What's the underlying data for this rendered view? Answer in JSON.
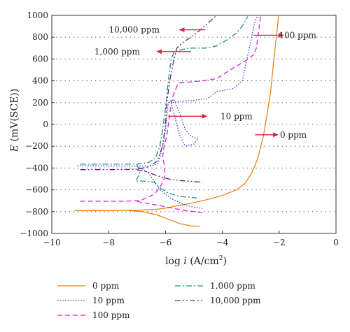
{
  "chart_data": {
    "type": "line",
    "xlabel_main": "log ",
    "xlabel_italic": "i",
    "xlabel_unit": " (A/cm",
    "xlabel_sup": "2",
    "xlabel_close": ")",
    "ylabel_italic": "E",
    "ylabel_unit": " (mV(SCE))",
    "xlim": [
      -10,
      0
    ],
    "ylim": [
      -1000,
      1000
    ],
    "xticks": [
      -10,
      -8,
      -6,
      -4,
      -2,
      0
    ],
    "xtick_labels": [
      "−10",
      "−8",
      "−6",
      "−4",
      "−2",
      "0"
    ],
    "yticks": [
      -1000,
      -800,
      -600,
      -400,
      -200,
      0,
      200,
      400,
      600,
      800,
      1000
    ],
    "ytick_labels": [
      "−1000",
      "−800",
      "−600",
      "−400",
      "−200",
      "0",
      "200",
      "400",
      "600",
      "800",
      "1000"
    ],
    "grid": "horizontal dotted",
    "legend_position": "bottom",
    "series": [
      {
        "name": "0 ppm",
        "color": "#e8831f",
        "dash": "solid",
        "points": [
          [
            -9.2,
            -790
          ],
          [
            -8.5,
            -790
          ],
          [
            -8,
            -790
          ],
          [
            -7.3,
            -788
          ],
          [
            -6.8,
            -785
          ],
          [
            -6.3,
            -778
          ],
          [
            -6,
            -768
          ],
          [
            -5.5,
            -742
          ],
          [
            -5,
            -718
          ],
          [
            -4.5,
            -688
          ],
          [
            -4,
            -652
          ],
          [
            -3.5,
            -600
          ],
          [
            -3.2,
            -540
          ],
          [
            -2.95,
            -440
          ],
          [
            -2.75,
            -310
          ],
          [
            -2.55,
            -100
          ],
          [
            -2.42,
            100
          ],
          [
            -2.3,
            300
          ],
          [
            -2.2,
            560
          ],
          [
            -2.1,
            800
          ],
          [
            -2.05,
            920
          ],
          [
            -2.02,
            1000
          ]
        ],
        "branch": [
          [
            -7.3,
            -790
          ],
          [
            -6.8,
            -800
          ],
          [
            -6.3,
            -830
          ],
          [
            -5.9,
            -870
          ],
          [
            -5.5,
            -910
          ],
          [
            -5.1,
            -930
          ],
          [
            -4.8,
            -935
          ]
        ]
      },
      {
        "name": "10 ppm",
        "color": "#2e3fbf",
        "dash": "1.5,2.2",
        "points": [
          [
            -9.1,
            -380
          ],
          [
            -8.5,
            -380
          ],
          [
            -7.5,
            -382
          ],
          [
            -7,
            -382
          ],
          [
            -6.5,
            -380
          ],
          [
            -6.3,
            -365
          ],
          [
            -6.2,
            -300
          ],
          [
            -6.1,
            -200
          ],
          [
            -6,
            -50
          ],
          [
            -5.9,
            200
          ],
          [
            -5.7,
            230
          ],
          [
            -5.5,
            100
          ],
          [
            -5.3,
            -50
          ],
          [
            -5.1,
            -110
          ],
          [
            -4.85,
            -130
          ],
          [
            -5,
            -180
          ],
          [
            -5.3,
            -200
          ],
          [
            -5.5,
            -100
          ],
          [
            -5.6,
            0
          ],
          [
            -5.7,
            100
          ],
          [
            -5.8,
            200
          ],
          [
            -5.5,
            210
          ],
          [
            -5,
            220
          ],
          [
            -4.5,
            240
          ],
          [
            -4.2,
            300
          ],
          [
            -3.6,
            330
          ],
          [
            -3.3,
            400
          ],
          [
            -3.05,
            700
          ],
          [
            -2.85,
            950
          ],
          [
            -2.75,
            1000
          ]
        ],
        "branch": [
          [
            -7,
            -385
          ],
          [
            -6.6,
            -440
          ],
          [
            -6.4,
            -520
          ],
          [
            -6.2,
            -600
          ],
          [
            -5.8,
            -680
          ],
          [
            -5.4,
            -730
          ],
          [
            -5,
            -760
          ],
          [
            -4.7,
            -770
          ]
        ]
      },
      {
        "name": "100 ppm",
        "color": "#e21fd8",
        "dash": "7,4",
        "points": [
          [
            -9,
            -705
          ],
          [
            -8.5,
            -705
          ],
          [
            -8,
            -705
          ],
          [
            -7.5,
            -705
          ],
          [
            -7,
            -700
          ],
          [
            -6.8,
            -690
          ],
          [
            -6.4,
            -640
          ],
          [
            -6.2,
            -580
          ],
          [
            -6.05,
            -500
          ],
          [
            -6.02,
            -400
          ],
          [
            -6.1,
            -300
          ],
          [
            -6.05,
            -200
          ],
          [
            -5.95,
            -100
          ],
          [
            -5.85,
            100
          ],
          [
            -5.75,
            250
          ],
          [
            -5.6,
            350
          ],
          [
            -5.5,
            380
          ],
          [
            -4.7,
            400
          ],
          [
            -4.2,
            420
          ],
          [
            -3.6,
            520
          ],
          [
            -3.2,
            580
          ],
          [
            -2.9,
            640
          ],
          [
            -2.8,
            700
          ],
          [
            -2.65,
            1000
          ]
        ],
        "branch": [
          [
            -7,
            -708
          ],
          [
            -6.5,
            -730
          ],
          [
            -6,
            -755
          ],
          [
            -5.5,
            -780
          ],
          [
            -5,
            -800
          ],
          [
            -4.6,
            -810
          ]
        ]
      },
      {
        "name": "1,000 ppm",
        "color": "#1f8f88",
        "dash": "8,3,2,3",
        "points": [
          [
            -9,
            -365
          ],
          [
            -8.5,
            -365
          ],
          [
            -8,
            -365
          ],
          [
            -7.5,
            -365
          ],
          [
            -7,
            -365
          ],
          [
            -6.6,
            -350
          ],
          [
            -6.35,
            -310
          ],
          [
            -6.2,
            -200
          ],
          [
            -6.1,
            -50
          ],
          [
            -6,
            150
          ],
          [
            -5.9,
            400
          ],
          [
            -5.8,
            600
          ],
          [
            -5.7,
            660
          ],
          [
            -5.5,
            680
          ],
          [
            -5.2,
            700
          ],
          [
            -4.6,
            700
          ],
          [
            -4.2,
            720
          ],
          [
            -3.8,
            780
          ],
          [
            -3.5,
            840
          ],
          [
            -3.3,
            900
          ],
          [
            -3.1,
            990
          ]
        ],
        "branch": [
          [
            -7,
            -370
          ],
          [
            -6.9,
            -450
          ],
          [
            -7.05,
            -520
          ],
          [
            -6.7,
            -520
          ],
          [
            -6.4,
            -530
          ],
          [
            -6.2,
            -580
          ],
          [
            -5.9,
            -630
          ],
          [
            -5.5,
            -660
          ],
          [
            -5.1,
            -670
          ],
          [
            -4.9,
            -675
          ]
        ]
      },
      {
        "name": "10,000 ppm",
        "color": "#6a1e7a",
        "dash": "8,3,2,3,2,3",
        "points": [
          [
            -9,
            -415
          ],
          [
            -8.5,
            -415
          ],
          [
            -8,
            -415
          ],
          [
            -7.5,
            -415
          ],
          [
            -7,
            -410
          ],
          [
            -6.6,
            -390
          ],
          [
            -6.3,
            -340
          ],
          [
            -6.1,
            -200
          ],
          [
            -6,
            0
          ],
          [
            -5.95,
            200
          ],
          [
            -5.85,
            400
          ],
          [
            -5.7,
            600
          ],
          [
            -5.6,
            700
          ],
          [
            -5.4,
            750
          ],
          [
            -5.1,
            800
          ],
          [
            -4.8,
            860
          ],
          [
            -4.5,
            930
          ],
          [
            -4.2,
            1000
          ]
        ],
        "branch": [
          [
            -7,
            -415
          ],
          [
            -6.6,
            -440
          ],
          [
            -6.3,
            -470
          ],
          [
            -5.9,
            -500
          ],
          [
            -5.5,
            -515
          ],
          [
            -5,
            -525
          ],
          [
            -4.7,
            -530
          ]
        ]
      }
    ],
    "annotations": [
      {
        "text": "10,000 ppm",
        "x": -7.1,
        "y": 868,
        "arrow_from": [
          -4.6,
          868
        ],
        "arrow_to": [
          -5.5,
          868
        ]
      },
      {
        "text": "1,000 ppm",
        "x": -7.7,
        "y": 668,
        "arrow_from": [
          -5.1,
          668
        ],
        "arrow_to": [
          -6.3,
          668
        ]
      },
      {
        "text": "100 ppm",
        "x": -1.35,
        "y": 818,
        "arrow_from": [
          -2.9,
          818
        ],
        "arrow_to": [
          -1.85,
          818
        ]
      },
      {
        "text": "10 ppm",
        "x": -3.5,
        "y": 75,
        "arrow_from": [
          -5.9,
          75
        ],
        "arrow_to": [
          -4.55,
          75
        ]
      },
      {
        "text": "0 ppm",
        "x": -1.5,
        "y": -95,
        "arrow_from": [
          -2.85,
          -95
        ],
        "arrow_to": [
          -2.05,
          -95
        ]
      }
    ]
  }
}
